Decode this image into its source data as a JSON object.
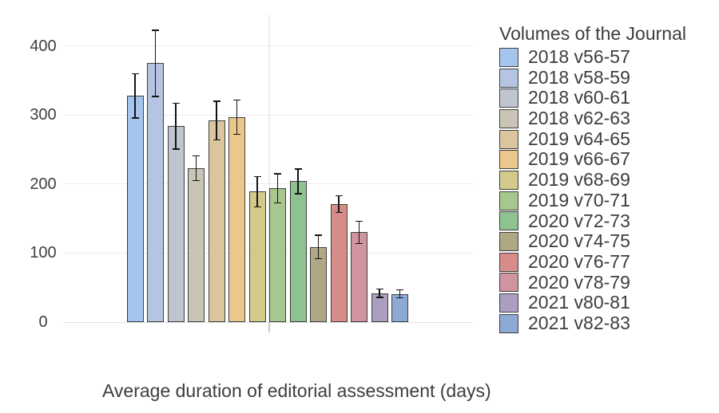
{
  "chart_data": {
    "type": "bar",
    "title": "",
    "xlabel": "Average duration of editorial assessment (days)",
    "ylabel": "",
    "ylim": [
      0,
      446
    ],
    "yticks": [
      0,
      100,
      200,
      300,
      400
    ],
    "grid": true,
    "legend_position": "right",
    "legend_title": "Volumes of the Journal",
    "categories": [
      "2018 v56-57",
      "2018 v58-59",
      "2018 v60-61",
      "2018 v62-63",
      "2019 v64-65",
      "2019 v66-67",
      "2019 v68-69",
      "2019 v70-71",
      "2020 v72-73",
      "2020 v74-75",
      "2020 v76-77",
      "2020 v78-79",
      "2021 v80-81",
      "2021 v82-83"
    ],
    "values": [
      328,
      375,
      284,
      223,
      292,
      297,
      189,
      194,
      204,
      109,
      171,
      130,
      42,
      41
    ],
    "errors_plus_minus": [
      32,
      48,
      33,
      18,
      28,
      25,
      22,
      21,
      18,
      17,
      12,
      16,
      6,
      6
    ],
    "colors": [
      "#a6c5ee",
      "#b5c4e3",
      "#bfc5ce",
      "#c9c4b6",
      "#dbc59d",
      "#eac88d",
      "#d2c98b",
      "#a7c78f",
      "#8ec290",
      "#b0a885",
      "#d68d89",
      "#cf94a0",
      "#ab9ec1",
      "#8caad3"
    ],
    "bar_border_color": "#3f3f3f",
    "error_bar_color": "#141414",
    "gridline_color": "#ebebeb"
  }
}
